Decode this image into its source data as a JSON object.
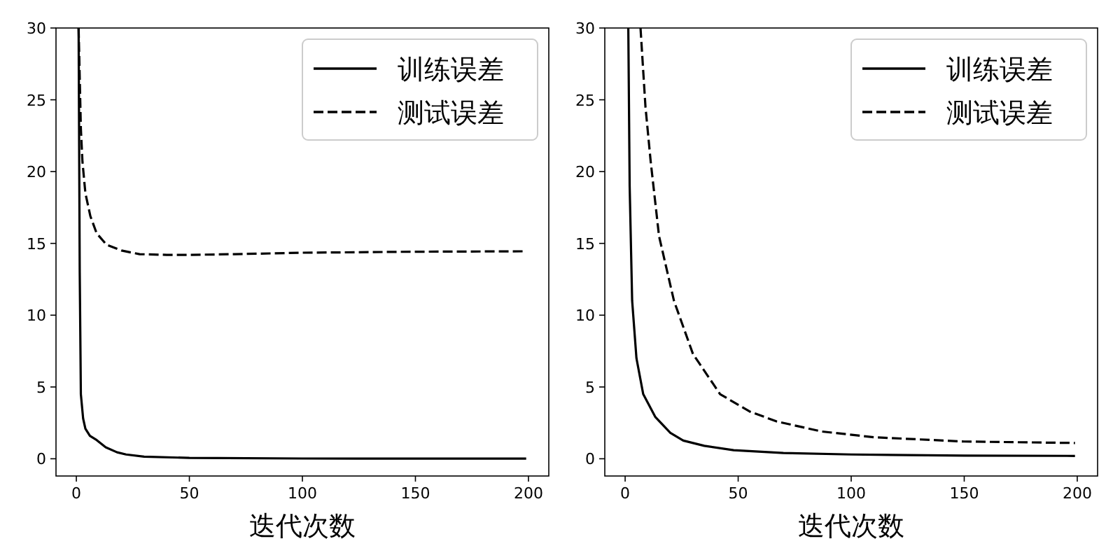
{
  "chart_data": [
    {
      "type": "line",
      "xlabel": "迭代次数",
      "xlim": [
        -9,
        209
      ],
      "ylim": [
        -1.2,
        30
      ],
      "xticks": [
        0,
        50,
        100,
        150,
        200
      ],
      "yticks": [
        0,
        5,
        10,
        15,
        20,
        25,
        30
      ],
      "legend": "top right",
      "grid": false,
      "marker": "none",
      "series": [
        {
          "name": "训练误差",
          "color": "#000000",
          "line_style": "solid",
          "x": [
            1,
            1.5,
            2,
            3,
            4,
            6,
            9,
            13,
            18,
            22,
            30,
            50,
            100,
            150,
            199
          ],
          "values": [
            30,
            13,
            4.5,
            2.8,
            2.1,
            1.6,
            1.3,
            0.8,
            0.45,
            0.3,
            0.15,
            0.06,
            0.02,
            0.01,
            0.01
          ]
        },
        {
          "name": "测试误差",
          "color": "#000000",
          "line_style": "dashed",
          "x": [
            1,
            2,
            2.7,
            4,
            6.2,
            9,
            13.4,
            20,
            28,
            40,
            50,
            70,
            100,
            150,
            199
          ],
          "values": [
            30,
            23,
            20.7,
            18.5,
            16.9,
            15.7,
            14.9,
            14.5,
            14.25,
            14.2,
            14.2,
            14.25,
            14.35,
            14.42,
            14.45
          ]
        }
      ]
    },
    {
      "type": "line",
      "xlabel": "迭代次数",
      "xlim": [
        -9,
        209
      ],
      "ylim": [
        -1.2,
        30
      ],
      "xticks": [
        0,
        50,
        100,
        150,
        200
      ],
      "yticks": [
        0,
        5,
        10,
        15,
        20,
        25,
        30
      ],
      "legend": "top right",
      "grid": false,
      "marker": "none",
      "series": [
        {
          "name": "训练误差",
          "color": "#000000",
          "line_style": "solid",
          "x": [
            1.4,
            2,
            3.1,
            5,
            8,
            13.4,
            20,
            25.7,
            35,
            48,
            70,
            100,
            150,
            199
          ],
          "values": [
            30,
            19,
            11,
            7,
            4.5,
            2.9,
            1.8,
            1.27,
            0.9,
            0.6,
            0.4,
            0.3,
            0.22,
            0.2
          ]
        },
        {
          "name": "测试误差",
          "color": "#000000",
          "line_style": "dashed",
          "x": [
            6.8,
            9,
            11.3,
            15,
            21.6,
            30,
            42,
            55,
            67,
            87,
            110,
            150,
            199
          ],
          "values": [
            30,
            24.5,
            20.7,
            15.5,
            11,
            7.3,
            4.5,
            3.3,
            2.6,
            1.9,
            1.5,
            1.2,
            1.1
          ]
        }
      ]
    }
  ]
}
